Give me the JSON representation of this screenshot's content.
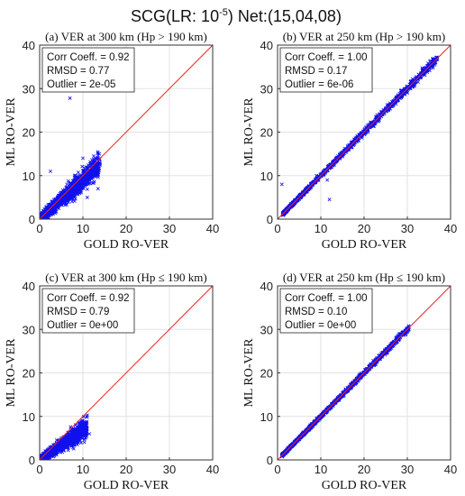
{
  "figure": {
    "title_main": "SCG(LR: 10",
    "title_exp": "-5",
    "title_tail": ") Net:(15,04,08)"
  },
  "colors": {
    "points": "#1010ee",
    "reference_line": "#ee2222",
    "grid": "#e2e2e2",
    "axis": "#333333"
  },
  "chart_data": [
    {
      "type": "scatter",
      "panel": "(a)",
      "title": "(a) VER at 300 km (Hp > 190 km)",
      "xlabel": "GOLD RO-VER",
      "ylabel": "ML RO-VER",
      "xlim": [
        0,
        40
      ],
      "ylim": [
        0,
        40
      ],
      "ticks": [
        0,
        10,
        20,
        30,
        40
      ],
      "grid": true,
      "reference_line": "y = x",
      "stats": [
        "Corr Coeff. = 0.92",
        "RMSD = 0.77",
        "Outlier = 2e-05"
      ],
      "cloud": {
        "x_min": 0.2,
        "x_max": 14,
        "spread": 1.1,
        "slope": 0.9
      },
      "outliers": [
        [
          7,
          27.8
        ],
        [
          11,
          5
        ],
        [
          13.5,
          7
        ],
        [
          12.5,
          14.5
        ],
        [
          10,
          14
        ],
        [
          2.5,
          11
        ]
      ]
    },
    {
      "type": "scatter",
      "panel": "(b)",
      "title": "(b) VER at 250 km (Hp > 190 km)",
      "xlabel": "GOLD RO-VER",
      "ylabel": "ML RO-VER",
      "xlim": [
        0,
        40
      ],
      "ylim": [
        0,
        40
      ],
      "ticks": [
        0,
        10,
        20,
        30,
        40
      ],
      "grid": true,
      "reference_line": "y = x",
      "stats": [
        "Corr Coeff. = 1.00",
        "RMSD = 0.17",
        "Outlier = 6e-06"
      ],
      "cloud": {
        "x_min": 1.2,
        "x_max": 37,
        "spread": 0.35,
        "slope": 1.0
      },
      "outliers": [
        [
          1,
          8
        ],
        [
          12,
          4.5
        ],
        [
          9,
          10
        ],
        [
          11.5,
          9
        ]
      ]
    },
    {
      "type": "scatter",
      "panel": "(c)",
      "title": "(c) VER at 300 km (Hp ≤ 190 km)",
      "xlabel": "GOLD RO-VER",
      "ylabel": "ML RO-VER",
      "xlim": [
        0,
        40
      ],
      "ylim": [
        0,
        40
      ],
      "ticks": [
        0,
        10,
        20,
        30,
        40
      ],
      "grid": true,
      "reference_line": "y = x",
      "stats": [
        "Corr Coeff. = 0.92",
        "RMSD = 0.79",
        "Outlier = 0e+00"
      ],
      "cloud": {
        "x_min": 0.2,
        "x_max": 11,
        "spread": 0.9,
        "slope": 0.68
      },
      "outliers": [
        [
          11,
          10.3
        ],
        [
          10,
          9
        ],
        [
          11.5,
          6
        ]
      ]
    },
    {
      "type": "scatter",
      "panel": "(d)",
      "title": "(d) VER at 250 km (Hp ≤ 190 km)",
      "xlabel": "GOLD RO-VER",
      "ylabel": "ML RO-VER",
      "xlim": [
        0,
        40
      ],
      "ylim": [
        0,
        40
      ],
      "ticks": [
        0,
        10,
        20,
        30,
        40
      ],
      "grid": true,
      "reference_line": "y = x",
      "stats": [
        "Corr Coeff. = 1.00",
        "RMSD = 0.10",
        "Outlier = 0e+00"
      ],
      "cloud": {
        "x_min": 1.0,
        "x_max": 30.5,
        "spread": 0.25,
        "slope": 1.0
      },
      "outliers": []
    }
  ]
}
